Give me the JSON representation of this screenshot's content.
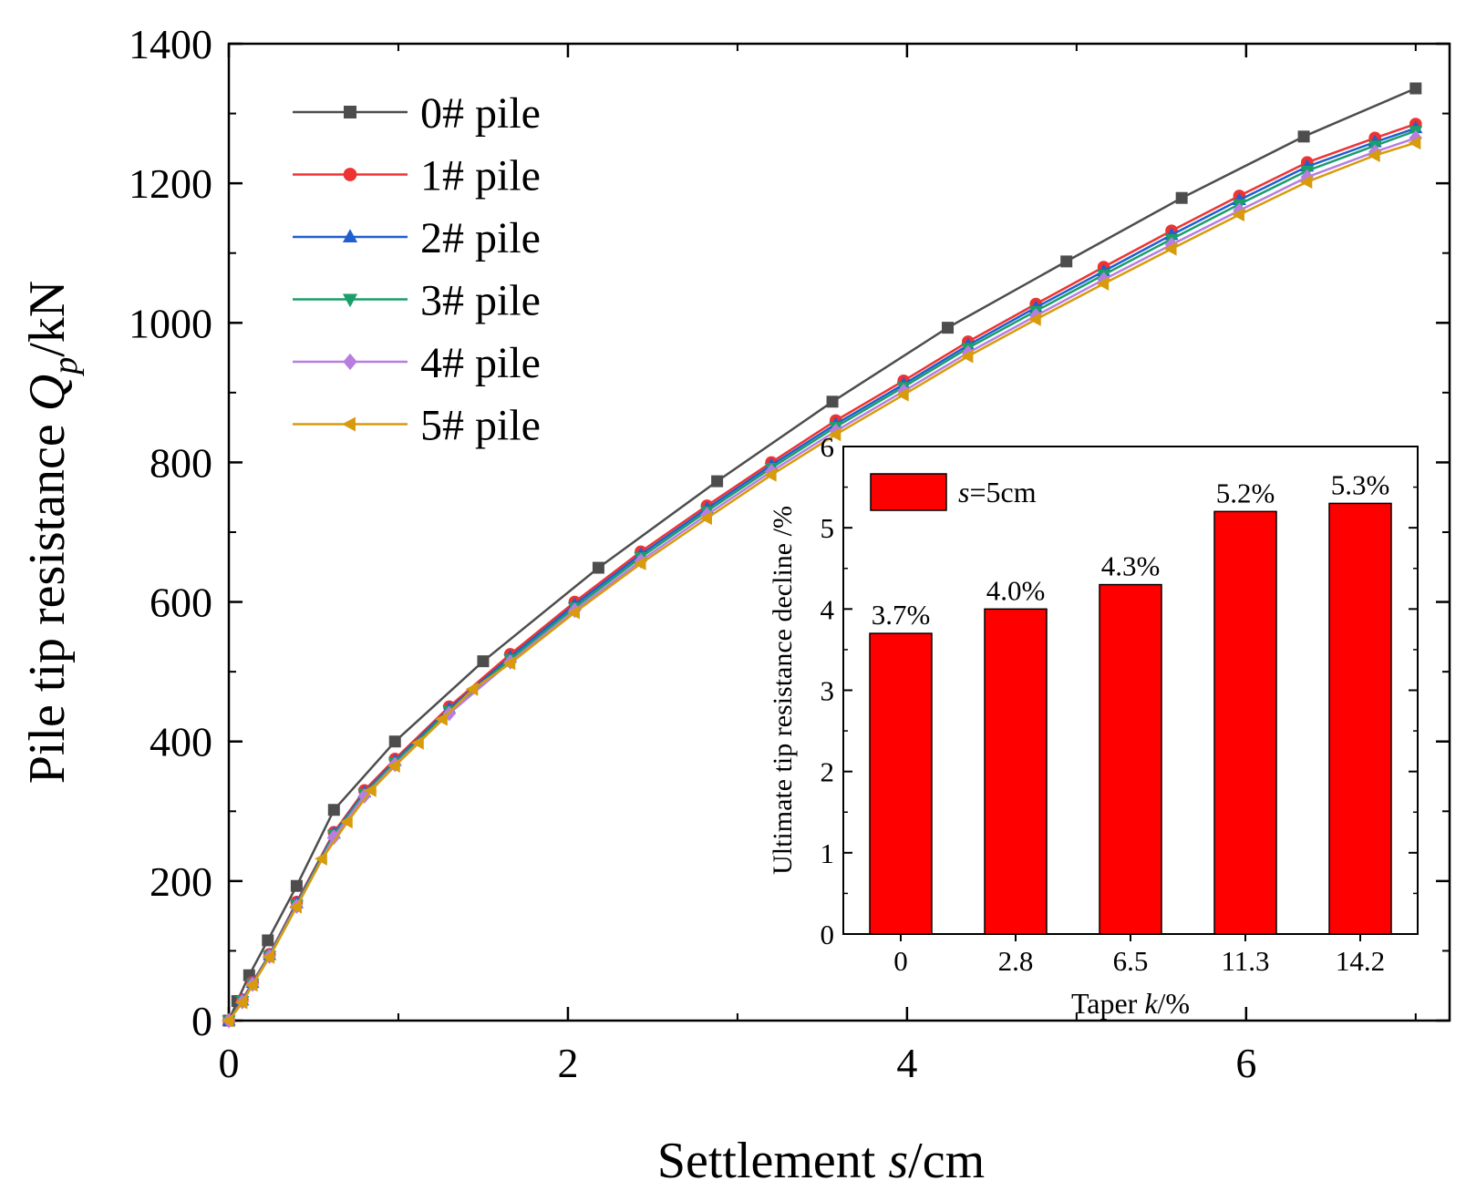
{
  "chart_data": [
    {
      "type": "line",
      "title": "",
      "xlabel": "Settlement  s/cm",
      "xlabel_parts": {
        "prefix": "Settlement  ",
        "var": "s",
        "suffix": "/cm"
      },
      "ylabel": "Pile tip resistance Qp/kN",
      "ylabel_parts": {
        "prefix": "Pile tip resistance ",
        "var": "Q",
        "sub": "p",
        "suffix": "/kN"
      },
      "xlim": [
        0,
        7.2
      ],
      "ylim": [
        0,
        1400
      ],
      "xticks": [
        0,
        2,
        4,
        6
      ],
      "yticks": [
        0,
        200,
        400,
        600,
        800,
        1000,
        1200,
        1400
      ],
      "grid": false,
      "legend_position": "top-left",
      "series": [
        {
          "name": "0# pile",
          "color": "#4d4d4d",
          "marker": "square",
          "x": [
            0,
            0.05,
            0.12,
            0.23,
            0.4,
            0.62,
            0.98,
            1.5,
            2.18,
            2.88,
            3.56,
            4.24,
            4.94,
            5.62,
            6.34,
            7.0
          ],
          "y": [
            0,
            28,
            65,
            115,
            193,
            302,
            400,
            515,
            649,
            773,
            887,
            993,
            1088,
            1179,
            1267,
            1336
          ]
        },
        {
          "name": "1# pile",
          "color": "#ee3333",
          "marker": "circle",
          "x": [
            0,
            0.08,
            0.14,
            0.24,
            0.4,
            0.62,
            0.8,
            0.98,
            1.3,
            1.66,
            2.04,
            2.43,
            2.82,
            3.2,
            3.58,
            3.98,
            4.36,
            4.76,
            5.16,
            5.56,
            5.96,
            6.36,
            6.76,
            7.0
          ],
          "y": [
            0,
            30,
            55,
            95,
            170,
            270,
            330,
            375,
            450,
            525,
            600,
            672,
            738,
            800,
            860,
            917,
            973,
            1027,
            1080,
            1132,
            1182,
            1230,
            1265,
            1285
          ]
        },
        {
          "name": "2# pile",
          "color": "#1f5fcf",
          "marker": "triangle-up",
          "x": [
            0,
            0.08,
            0.14,
            0.24,
            0.4,
            0.62,
            0.8,
            0.98,
            1.3,
            1.66,
            2.04,
            2.43,
            2.82,
            3.2,
            3.58,
            3.98,
            4.36,
            4.76,
            5.16,
            5.56,
            5.96,
            6.36,
            6.76,
            7.0
          ],
          "y": [
            0,
            29,
            54,
            94,
            168,
            268,
            327,
            372,
            447,
            521,
            596,
            668,
            734,
            796,
            855,
            912,
            968,
            1022,
            1074,
            1126,
            1176,
            1224,
            1259,
            1279
          ]
        },
        {
          "name": "3# pile",
          "color": "#1a9e6a",
          "marker": "triangle-down",
          "x": [
            0,
            0.08,
            0.14,
            0.24,
            0.4,
            0.62,
            0.8,
            0.98,
            1.3,
            1.66,
            2.04,
            2.43,
            2.82,
            3.2,
            3.58,
            3.98,
            4.36,
            4.76,
            5.16,
            5.56,
            5.96,
            6.36,
            6.76,
            7.0
          ],
          "y": [
            0,
            28,
            53,
            93,
            166,
            266,
            325,
            370,
            444,
            518,
            592,
            664,
            730,
            792,
            851,
            908,
            964,
            1017,
            1069,
            1120,
            1170,
            1218,
            1254,
            1275
          ]
        },
        {
          "name": "4# pile",
          "color": "#b77ee0",
          "marker": "diamond",
          "x": [
            0,
            0.08,
            0.14,
            0.24,
            0.4,
            0.62,
            0.8,
            0.98,
            1.3,
            1.66,
            2.04,
            2.43,
            2.82,
            3.2,
            3.58,
            3.98,
            4.36,
            4.76,
            5.16,
            5.56,
            5.96,
            6.36,
            6.76,
            7.0
          ],
          "y": [
            0,
            27,
            52,
            92,
            164,
            263,
            322,
            367,
            440,
            514,
            588,
            659,
            725,
            787,
            845,
            902,
            957,
            1010,
            1062,
            1112,
            1161,
            1209,
            1245,
            1265
          ]
        },
        {
          "name": "5# pile",
          "color": "#d79b0c",
          "marker": "triangle-left",
          "x": [
            0,
            0.08,
            0.14,
            0.24,
            0.4,
            0.55,
            0.7,
            0.84,
            0.98,
            1.12,
            1.26,
            1.44,
            1.66,
            2.04,
            2.43,
            2.82,
            3.2,
            3.58,
            3.98,
            4.36,
            4.76,
            5.16,
            5.56,
            5.96,
            6.36,
            6.76,
            7.0
          ],
          "y": [
            0,
            26,
            51,
            91,
            163,
            232,
            285,
            330,
            365,
            398,
            432,
            475,
            512,
            585,
            655,
            720,
            782,
            840,
            897,
            952,
            1005,
            1056,
            1106,
            1155,
            1202,
            1240,
            1258
          ]
        }
      ]
    },
    {
      "type": "bar",
      "title": "",
      "xlabel": "Taper k/%",
      "xlabel_parts": {
        "prefix": "Taper ",
        "var": "k",
        "suffix": "/%"
      },
      "ylabel": "Ultimate tip resistance decline /%",
      "categories": [
        "0",
        "2.8",
        "6.5",
        "11.3",
        "14.2"
      ],
      "values": [
        3.7,
        4.0,
        4.3,
        5.2,
        5.3
      ],
      "data_labels": [
        "3.7%",
        "4.0%",
        "4.3%",
        "5.2%",
        "5.3%"
      ],
      "ylim": [
        0,
        6
      ],
      "yticks": [
        0,
        1,
        2,
        3,
        4,
        5,
        6
      ],
      "grid": false,
      "legend_position": "top-left",
      "legend_label": "s=5cm",
      "legend_parts": {
        "var": "s",
        "suffix": "=5cm"
      },
      "bar_color": "#ff0000"
    }
  ]
}
